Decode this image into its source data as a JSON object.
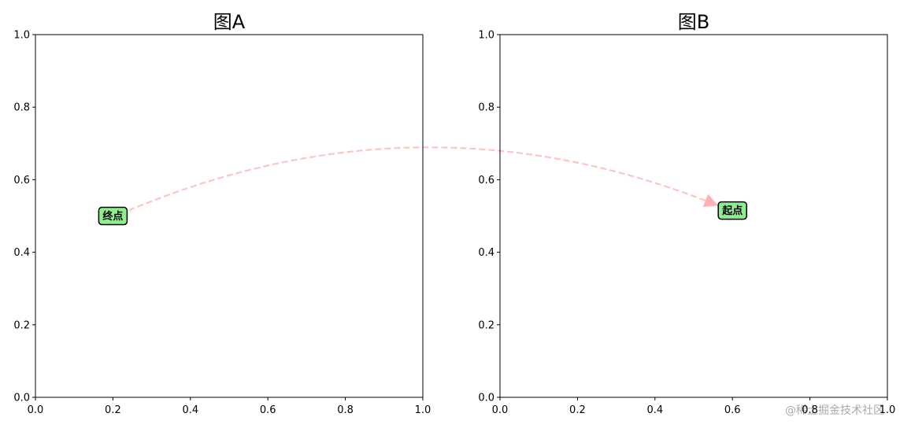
{
  "chart_data": [
    {
      "type": "scatter",
      "title": "图A",
      "xlim": [
        0,
        1
      ],
      "ylim": [
        0,
        1
      ],
      "xticks": [
        {
          "value": 0,
          "label": "0.0"
        },
        0.2,
        0.4,
        0.6,
        0.8,
        {
          "value": 1,
          "label": "1.0"
        }
      ],
      "yticks": [
        {
          "value": 0,
          "label": "0.0"
        },
        0.2,
        0.4,
        0.6,
        0.8,
        {
          "value": 1,
          "label": "1.0"
        }
      ],
      "annotations": [
        {
          "text": "终点",
          "x": 0.2,
          "y": 0.5
        }
      ]
    },
    {
      "type": "scatter",
      "title": "图B",
      "xlim": [
        0,
        1
      ],
      "ylim": [
        0,
        1
      ],
      "xticks": [
        {
          "value": 0,
          "label": "0.0"
        },
        0.2,
        0.4,
        0.6,
        0.8,
        {
          "value": 1,
          "label": "1.0"
        }
      ],
      "yticks": [
        {
          "value": 0,
          "label": "0.0"
        },
        0.2,
        0.4,
        0.6,
        0.8,
        {
          "value": 1,
          "label": "1.0"
        }
      ],
      "annotations": [
        {
          "text": "起点",
          "x": 0.6,
          "y": 0.515
        }
      ]
    }
  ],
  "watermark": "@稀土掘金技术社区"
}
